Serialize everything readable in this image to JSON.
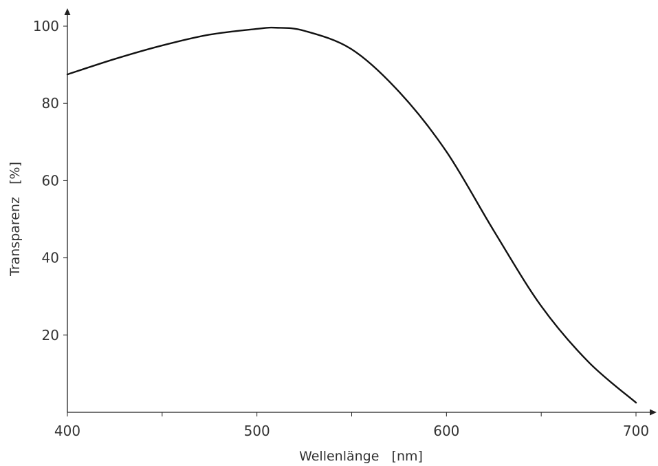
{
  "chart_data": {
    "type": "line",
    "xlabel": "Wellenlänge   [nm]",
    "ylabel": "Transparenz   [%]",
    "xlim": [
      400,
      700
    ],
    "ylim": [
      0,
      100
    ],
    "x_ticks": [
      400,
      450,
      500,
      550,
      600,
      650,
      700
    ],
    "x_tick_labels": [
      "400",
      "500",
      "600",
      "700"
    ],
    "y_tick_labels": [
      "20",
      "40",
      "60",
      "80",
      "100"
    ],
    "grid": false,
    "legend": "none",
    "line_color": "#111111",
    "series": [
      {
        "x": [
          400,
          425,
          450,
          475,
          500,
          510,
          525,
          550,
          575,
          600,
          625,
          650,
          675,
          700
        ],
        "y": [
          87.5,
          91.5,
          95.0,
          97.8,
          99.3,
          99.6,
          98.8,
          94.0,
          83.0,
          67.5,
          47.0,
          27.5,
          13.0,
          2.5
        ]
      }
    ]
  }
}
